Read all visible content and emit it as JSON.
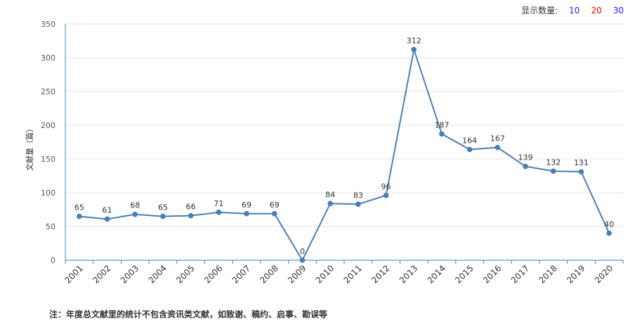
{
  "controls": {
    "display_count_label": "显示数量:",
    "options": [
      {
        "label": "10",
        "color": "#1a1aff"
      },
      {
        "label": "20",
        "color": "#e60000"
      },
      {
        "label": "30",
        "color": "#1a1aff"
      }
    ]
  },
  "note": "注：年度总文献里的统计不包含资讯类文献，如致谢、稿约、启事、勘误等",
  "chart_data": {
    "type": "line",
    "ylabel": "文献量（篇）",
    "xlabel": "",
    "ylim": [
      0,
      350
    ],
    "yticks": [
      0,
      50,
      100,
      150,
      200,
      250,
      300,
      350
    ],
    "grid": true,
    "series_color": "#4a7fb5",
    "x": [
      "2001",
      "2002",
      "2003",
      "2004",
      "2005",
      "2006",
      "2007",
      "2008",
      "2009",
      "2010",
      "2011",
      "2012",
      "2013",
      "2014",
      "2015",
      "2016",
      "2017",
      "2018",
      "2019",
      "2020"
    ],
    "values": [
      65,
      61,
      68,
      65,
      66,
      71,
      69,
      69,
      0,
      84,
      83,
      96,
      312,
      187,
      164,
      167,
      139,
      132,
      131,
      40
    ]
  }
}
